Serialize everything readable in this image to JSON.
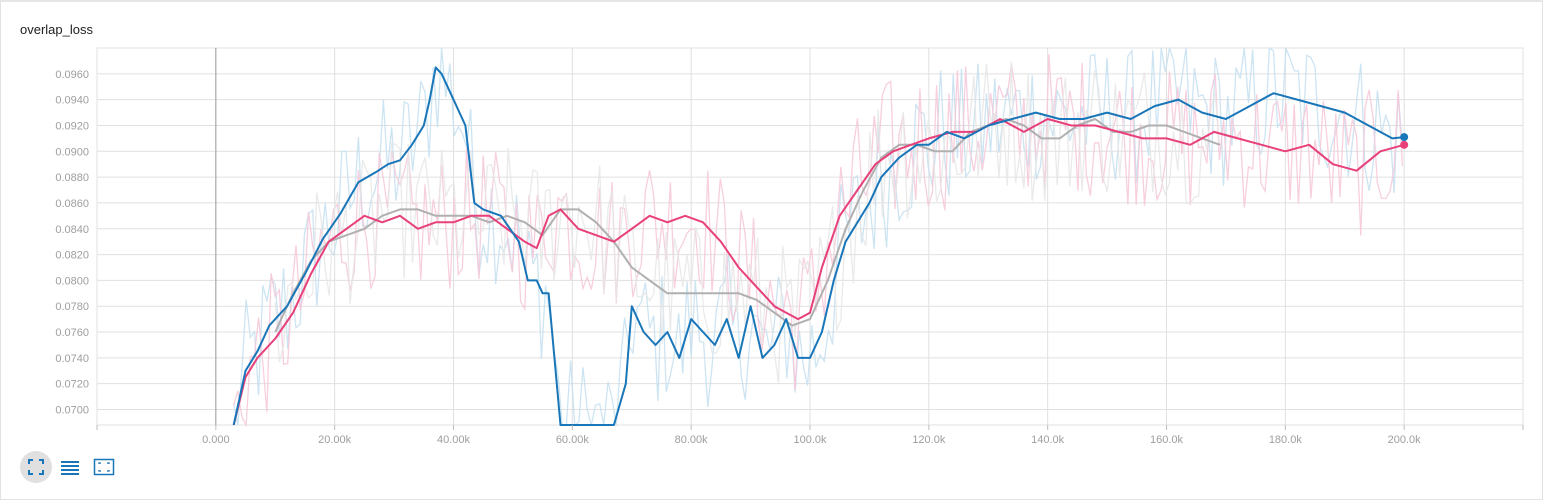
{
  "title": "overlap_loss",
  "colors": {
    "blue": "#1976b8",
    "pink": "#e8407a",
    "gray": "#b0b0b0",
    "blue_raw": "#c4dff0",
    "pink_raw": "#f6c7d8",
    "gray_raw": "#e6e6e6",
    "grid": "#e0e0e0"
  },
  "toolbar": {
    "icons": [
      "fullscreen-icon",
      "list-icon",
      "fit-domain-icon"
    ]
  },
  "chart_data": {
    "type": "line",
    "title": "overlap_loss",
    "xlabel": "",
    "ylabel": "",
    "xlim": [
      -20000,
      220000
    ],
    "ylim": [
      0.0688,
      0.098
    ],
    "x_ticks": [
      0,
      20000,
      40000,
      60000,
      80000,
      100000,
      120000,
      140000,
      160000,
      180000,
      200000
    ],
    "x_tick_labels": [
      "0.000",
      "20.00k",
      "40.00k",
      "60.00k",
      "80.00k",
      "100.0k",
      "120.0k",
      "140.0k",
      "160.0k",
      "180.0k",
      "200.0k"
    ],
    "y_ticks": [
      0.07,
      0.072,
      0.074,
      0.076,
      0.078,
      0.08,
      0.082,
      0.084,
      0.086,
      0.088,
      0.09,
      0.092,
      0.094,
      0.096
    ],
    "y_tick_labels": [
      "0.0700",
      "0.0720",
      "0.0740",
      "0.0760",
      "0.0780",
      "0.0800",
      "0.0820",
      "0.0840",
      "0.0860",
      "0.0880",
      "0.0900",
      "0.0920",
      "0.0940",
      "0.0960"
    ],
    "grid": true,
    "series": [
      {
        "color": "#1976b8",
        "raw_color": "#c4dff0",
        "x": [
          3000,
          5000,
          7000,
          9000,
          12000,
          15000,
          18000,
          21000,
          24000,
          27000,
          29000,
          31000,
          33000,
          35000,
          36000,
          37000,
          38000,
          40000,
          42000,
          43500,
          45000,
          48000,
          51000,
          52500,
          54000,
          55000,
          56000,
          58000,
          60000,
          62000,
          64000,
          67000,
          69000,
          70000,
          72000,
          74000,
          76000,
          78000,
          80000,
          82000,
          84000,
          86000,
          88000,
          90000,
          92000,
          94000,
          96000,
          98000,
          100000,
          102000,
          104000,
          106000,
          110000,
          112000,
          115000,
          118000,
          120000,
          123000,
          126000,
          130000,
          134000,
          138000,
          142000,
          146000,
          150000,
          154000,
          158000,
          162000,
          166000,
          170000,
          174000,
          178000,
          182000,
          186000,
          190000,
          194000,
          198000,
          200000
        ],
        "y": [
          0.0688,
          0.073,
          0.0745,
          0.0765,
          0.078,
          0.0805,
          0.0832,
          0.0852,
          0.0876,
          0.0884,
          0.089,
          0.0893,
          0.0905,
          0.092,
          0.094,
          0.0965,
          0.096,
          0.094,
          0.092,
          0.086,
          0.0855,
          0.085,
          0.083,
          0.08,
          0.08,
          0.079,
          0.079,
          0.0688,
          0.0688,
          0.0688,
          0.0688,
          0.0688,
          0.072,
          0.078,
          0.076,
          0.075,
          0.076,
          0.074,
          0.077,
          0.076,
          0.075,
          0.077,
          0.074,
          0.078,
          0.074,
          0.075,
          0.077,
          0.074,
          0.074,
          0.076,
          0.08,
          0.083,
          0.086,
          0.088,
          0.0895,
          0.0905,
          0.0905,
          0.0915,
          0.091,
          0.092,
          0.0925,
          0.093,
          0.0925,
          0.0925,
          0.093,
          0.0925,
          0.0935,
          0.094,
          0.093,
          0.0925,
          0.0935,
          0.0945,
          0.094,
          0.0935,
          0.093,
          0.092,
          0.091,
          0.0911
        ]
      },
      {
        "color": "#e8407a",
        "raw_color": "#f6c7d8",
        "x": [
          3000,
          5000,
          7000,
          10000,
          13000,
          16000,
          19000,
          22000,
          25000,
          28000,
          31000,
          34000,
          37000,
          40000,
          43000,
          46000,
          49000,
          52000,
          54000,
          56000,
          58000,
          61000,
          64000,
          67000,
          70000,
          73000,
          76000,
          79000,
          82000,
          85000,
          88000,
          90000,
          92000,
          94000,
          96000,
          98000,
          100000,
          102000,
          105000,
          108000,
          111000,
          114000,
          117000,
          120000,
          124000,
          128000,
          132000,
          136000,
          140000,
          144000,
          148000,
          152000,
          156000,
          160000,
          164000,
          168000,
          172000,
          176000,
          180000,
          184000,
          188000,
          192000,
          196000,
          200000
        ],
        "y": [
          0.0688,
          0.0725,
          0.074,
          0.0755,
          0.0775,
          0.0805,
          0.083,
          0.084,
          0.085,
          0.0845,
          0.085,
          0.084,
          0.0845,
          0.0845,
          0.085,
          0.085,
          0.084,
          0.083,
          0.0825,
          0.085,
          0.0855,
          0.084,
          0.0835,
          0.083,
          0.084,
          0.085,
          0.0845,
          0.085,
          0.0845,
          0.083,
          0.081,
          0.08,
          0.079,
          0.078,
          0.0775,
          0.077,
          0.0775,
          0.081,
          0.085,
          0.087,
          0.089,
          0.09,
          0.0905,
          0.091,
          0.0915,
          0.0915,
          0.0925,
          0.0915,
          0.0925,
          0.092,
          0.092,
          0.0915,
          0.091,
          0.091,
          0.0905,
          0.0915,
          0.091,
          0.0905,
          0.09,
          0.0905,
          0.089,
          0.0885,
          0.09,
          0.0905
        ]
      },
      {
        "color": "#b0b0b0",
        "raw_color": "#e6e6e6",
        "x": [
          10000,
          13000,
          16000,
          19000,
          22000,
          25000,
          28000,
          31000,
          34000,
          37000,
          40000,
          43000,
          46000,
          49000,
          52000,
          55000,
          58000,
          61000,
          64000,
          67000,
          70000,
          73000,
          76000,
          79000,
          82000,
          85000,
          88000,
          91000,
          94000,
          97000,
          100000,
          103000,
          106000,
          109000,
          112000,
          115000,
          118000,
          121000,
          124000,
          127000,
          130000,
          133000,
          136000,
          139000,
          142000,
          145000,
          148000,
          151000,
          154000,
          157000,
          160000,
          163000,
          166000,
          169000
        ],
        "y": [
          0.076,
          0.079,
          0.0815,
          0.083,
          0.0835,
          0.084,
          0.085,
          0.0855,
          0.0855,
          0.085,
          0.085,
          0.085,
          0.0845,
          0.085,
          0.0845,
          0.0835,
          0.0855,
          0.0855,
          0.0845,
          0.083,
          0.081,
          0.08,
          0.079,
          0.079,
          0.079,
          0.079,
          0.079,
          0.0785,
          0.0775,
          0.0765,
          0.077,
          0.08,
          0.084,
          0.087,
          0.0895,
          0.0905,
          0.0905,
          0.09,
          0.09,
          0.0915,
          0.092,
          0.0925,
          0.092,
          0.091,
          0.091,
          0.092,
          0.0925,
          0.0915,
          0.0915,
          0.092,
          0.092,
          0.0915,
          0.091,
          0.0905
        ]
      }
    ]
  }
}
